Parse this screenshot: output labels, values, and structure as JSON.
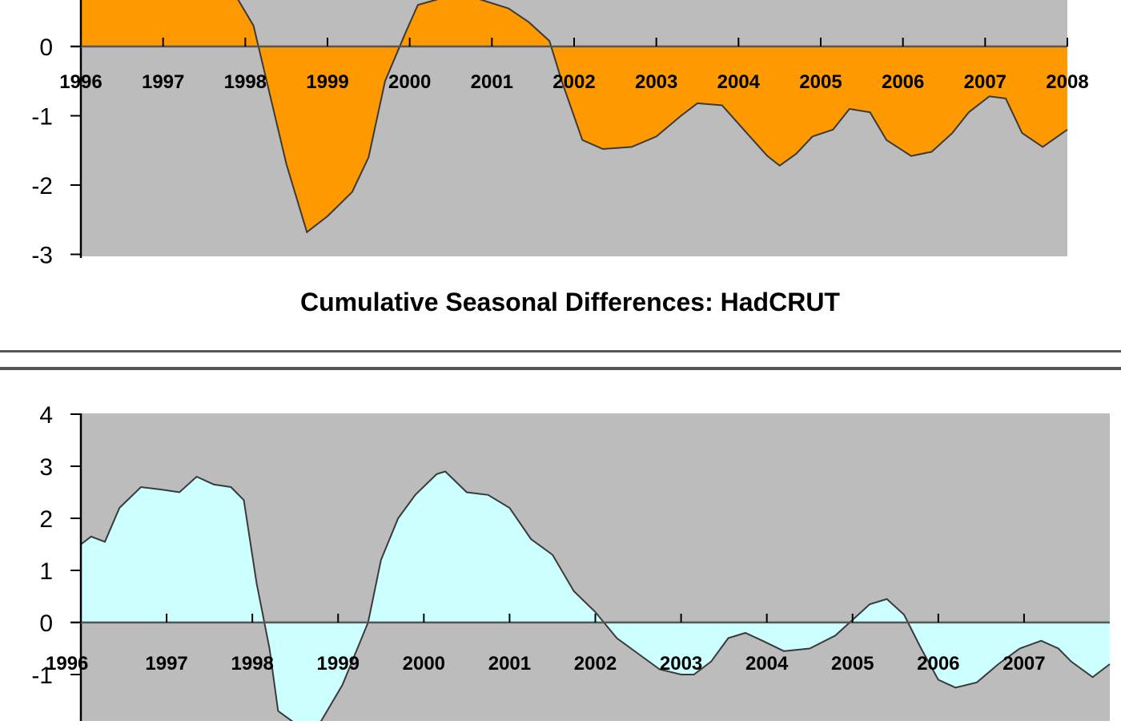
{
  "chart_data": [
    {
      "type": "area",
      "title": "",
      "xlabel": "",
      "ylabel": "",
      "ylim": [
        -3,
        0.7
      ],
      "xlim": [
        1996,
        2008
      ],
      "y_ticks": [
        "0",
        "-1",
        "-2",
        "-3"
      ],
      "x_ticks": [
        "1996",
        "1997",
        "1998",
        "1999",
        "2000",
        "2001",
        "2002",
        "2003",
        "2004",
        "2005",
        "2006",
        "2007",
        "2008"
      ],
      "fill_color": "#ff9900",
      "plot_background": "#bcbcbc",
      "grid": false,
      "series": [
        {
          "x": [
            1996,
            1997.9,
            1998.1,
            1998.5,
            1998.75,
            1999.0,
            1999.3,
            1999.5,
            1999.7,
            1999.95,
            2000.1,
            2000.4,
            2000.8,
            2001.2,
            2001.45,
            2001.7,
            2001.85,
            2002.1,
            2002.35,
            2002.7,
            2003.0,
            2003.3,
            2003.5,
            2003.8,
            2004.1,
            2004.35,
            2004.5,
            2004.7,
            2004.9,
            2005.15,
            2005.35,
            2005.6,
            2005.8,
            2006.1,
            2006.35,
            2006.6,
            2006.8,
            2007.05,
            2007.25,
            2007.45,
            2007.7,
            2008.0
          ],
          "y": [
            0.7,
            0.7,
            0.3,
            -1.7,
            -2.68,
            -2.45,
            -2.1,
            -1.6,
            -0.5,
            0.2,
            0.6,
            0.7,
            0.7,
            0.55,
            0.35,
            0.08,
            -0.5,
            -1.35,
            -1.48,
            -1.45,
            -1.3,
            -1.0,
            -0.82,
            -0.85,
            -1.25,
            -1.58,
            -1.72,
            -1.55,
            -1.3,
            -1.2,
            -0.9,
            -0.95,
            -1.35,
            -1.58,
            -1.52,
            -1.25,
            -0.95,
            -0.72,
            -0.75,
            -1.25,
            -1.45,
            -1.2
          ]
        }
      ]
    },
    {
      "type": "area",
      "title": "Cumulative Seasonal Differences: HadCRUT",
      "xlabel": "",
      "ylabel": "",
      "ylim": [
        -2,
        4
      ],
      "xlim": [
        1996,
        2008
      ],
      "y_ticks": [
        "4",
        "3",
        "2",
        "1",
        "0",
        "-1"
      ],
      "x_ticks": [
        "1996",
        "1997",
        "1998",
        "1999",
        "2000",
        "2001",
        "2002",
        "2003",
        "2004",
        "2005",
        "2006",
        "2007"
      ],
      "fill_color": "#ccffff",
      "plot_background": "#bcbcbc",
      "grid": false,
      "series": [
        {
          "x": [
            1996,
            1996.12,
            1996.28,
            1996.45,
            1996.7,
            1996.95,
            1997.15,
            1997.35,
            1997.55,
            1997.75,
            1997.9,
            1998.05,
            1998.2,
            1998.3,
            1998.55,
            1998.8,
            1999.05,
            1999.35,
            1999.5,
            1999.7,
            1999.9,
            2000.15,
            2000.25,
            2000.5,
            2000.75,
            2001.0,
            2001.25,
            2001.5,
            2001.75,
            2002.0,
            2002.25,
            2002.5,
            2002.75,
            2003.0,
            2003.15,
            2003.35,
            2003.55,
            2003.75,
            2003.95,
            2004.2,
            2004.5,
            2004.8,
            2005.0,
            2005.2,
            2005.4,
            2005.6,
            2005.8,
            2006.0,
            2006.2,
            2006.45,
            2006.7,
            2006.95,
            2007.2,
            2007.4,
            2007.55,
            2007.8,
            2008.0
          ],
          "y": [
            1.5,
            1.65,
            1.55,
            2.2,
            2.6,
            2.55,
            2.5,
            2.8,
            2.65,
            2.6,
            2.35,
            0.75,
            -0.5,
            -1.7,
            -2.0,
            -1.9,
            -1.2,
            0.0,
            1.2,
            2.0,
            2.45,
            2.85,
            2.9,
            2.5,
            2.45,
            2.2,
            1.6,
            1.3,
            0.6,
            0.2,
            -0.3,
            -0.6,
            -0.9,
            -1.0,
            -1.0,
            -0.75,
            -0.3,
            -0.2,
            -0.35,
            -0.55,
            -0.5,
            -0.25,
            0.05,
            0.35,
            0.45,
            0.15,
            -0.5,
            -1.1,
            -1.25,
            -1.15,
            -0.8,
            -0.5,
            -0.35,
            -0.5,
            -0.75,
            -1.05,
            -0.8
          ]
        }
      ]
    }
  ]
}
